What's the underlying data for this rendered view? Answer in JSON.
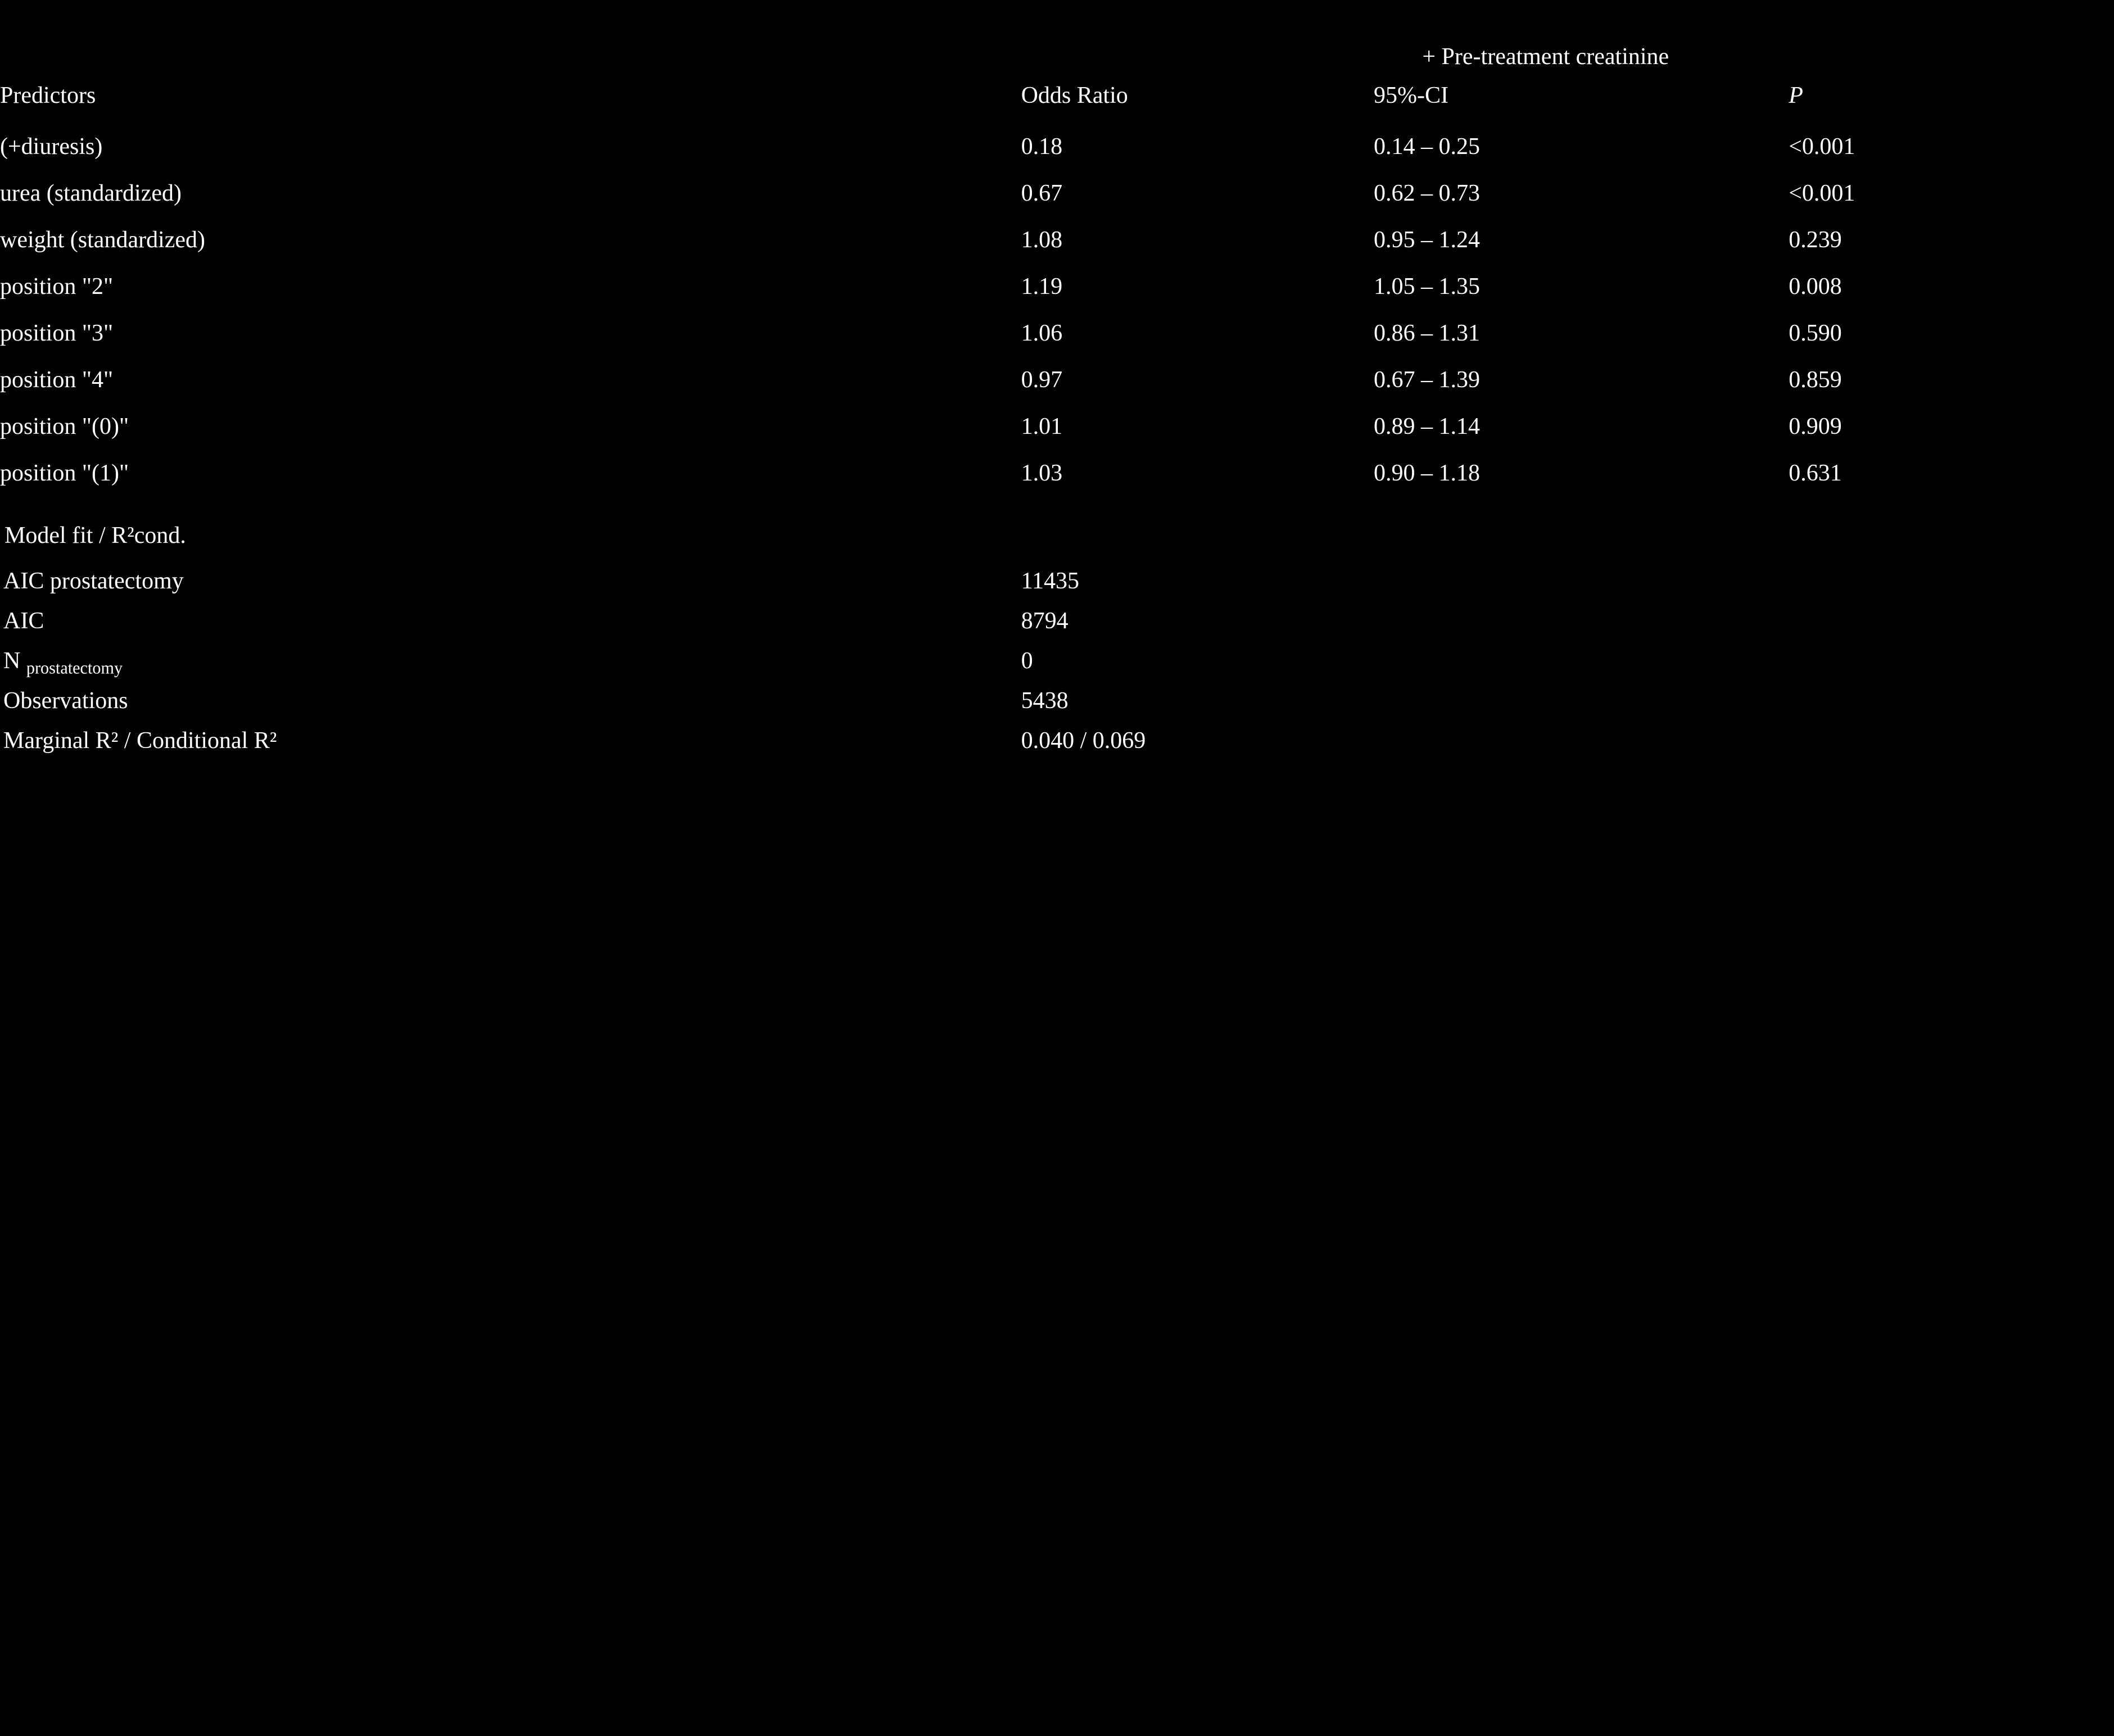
{
  "colors": {
    "background": "#000000",
    "text": "#ffffff"
  },
  "typography": {
    "font_family": "Georgia, 'Times New Roman', serif",
    "base_fontsize_pt": 32,
    "super_header_style": "plain",
    "p_header_style": "italic"
  },
  "table": {
    "type": "table",
    "column_widths_pct": [
      49,
      17,
      20,
      14
    ],
    "super_header": "+ Pre-treatment creatinine",
    "headers": {
      "predictors": "Predictors",
      "odds_ratio": "Odds Ratio",
      "ci": "95%-CI",
      "p": "P"
    },
    "rows": [
      {
        "predictor": "(+diuresis)",
        "or": "0.18",
        "ci": "0.14 – 0.25",
        "p": "<0.001"
      },
      {
        "predictor": "urea (standardized)",
        "or": "0.67",
        "ci": "0.62 – 0.73",
        "p": "<0.001"
      },
      {
        "predictor": "weight (standardized)",
        "or": "1.08",
        "ci": "0.95 – 1.24",
        "p": "0.239"
      },
      {
        "predictor": "position \"2\"",
        "or": "1.19",
        "ci": "1.05 – 1.35",
        "p": "0.008"
      },
      {
        "predictor": "position \"3\"",
        "or": "1.06",
        "ci": "0.86 – 1.31",
        "p": "0.590"
      },
      {
        "predictor": "position \"4\"",
        "or": "0.97",
        "ci": "0.67 – 1.39",
        "p": "0.859"
      },
      {
        "predictor": "position \"(0)\"",
        "or": "1.01",
        "ci": "0.89 – 1.14",
        "p": "0.909"
      },
      {
        "predictor": "position \"(1)\"",
        "or": "1.03",
        "ci": "0.90 – 1.18",
        "p": "0.631"
      }
    ],
    "fit_section_title": "Model fit / R²cond.",
    "fit_rows": [
      {
        "label_html": "AIC prostatectomy",
        "value": "11435"
      },
      {
        "label_html": "AIC",
        "value": "8794"
      },
      {
        "label_html": "N <span class=\"sub\">prostatectomy</span>",
        "value": "0"
      },
      {
        "label_html": "Observations",
        "value": "5438"
      },
      {
        "label_html": "Marginal R² / Conditional R²",
        "value": "0.040 / 0.069"
      }
    ]
  }
}
